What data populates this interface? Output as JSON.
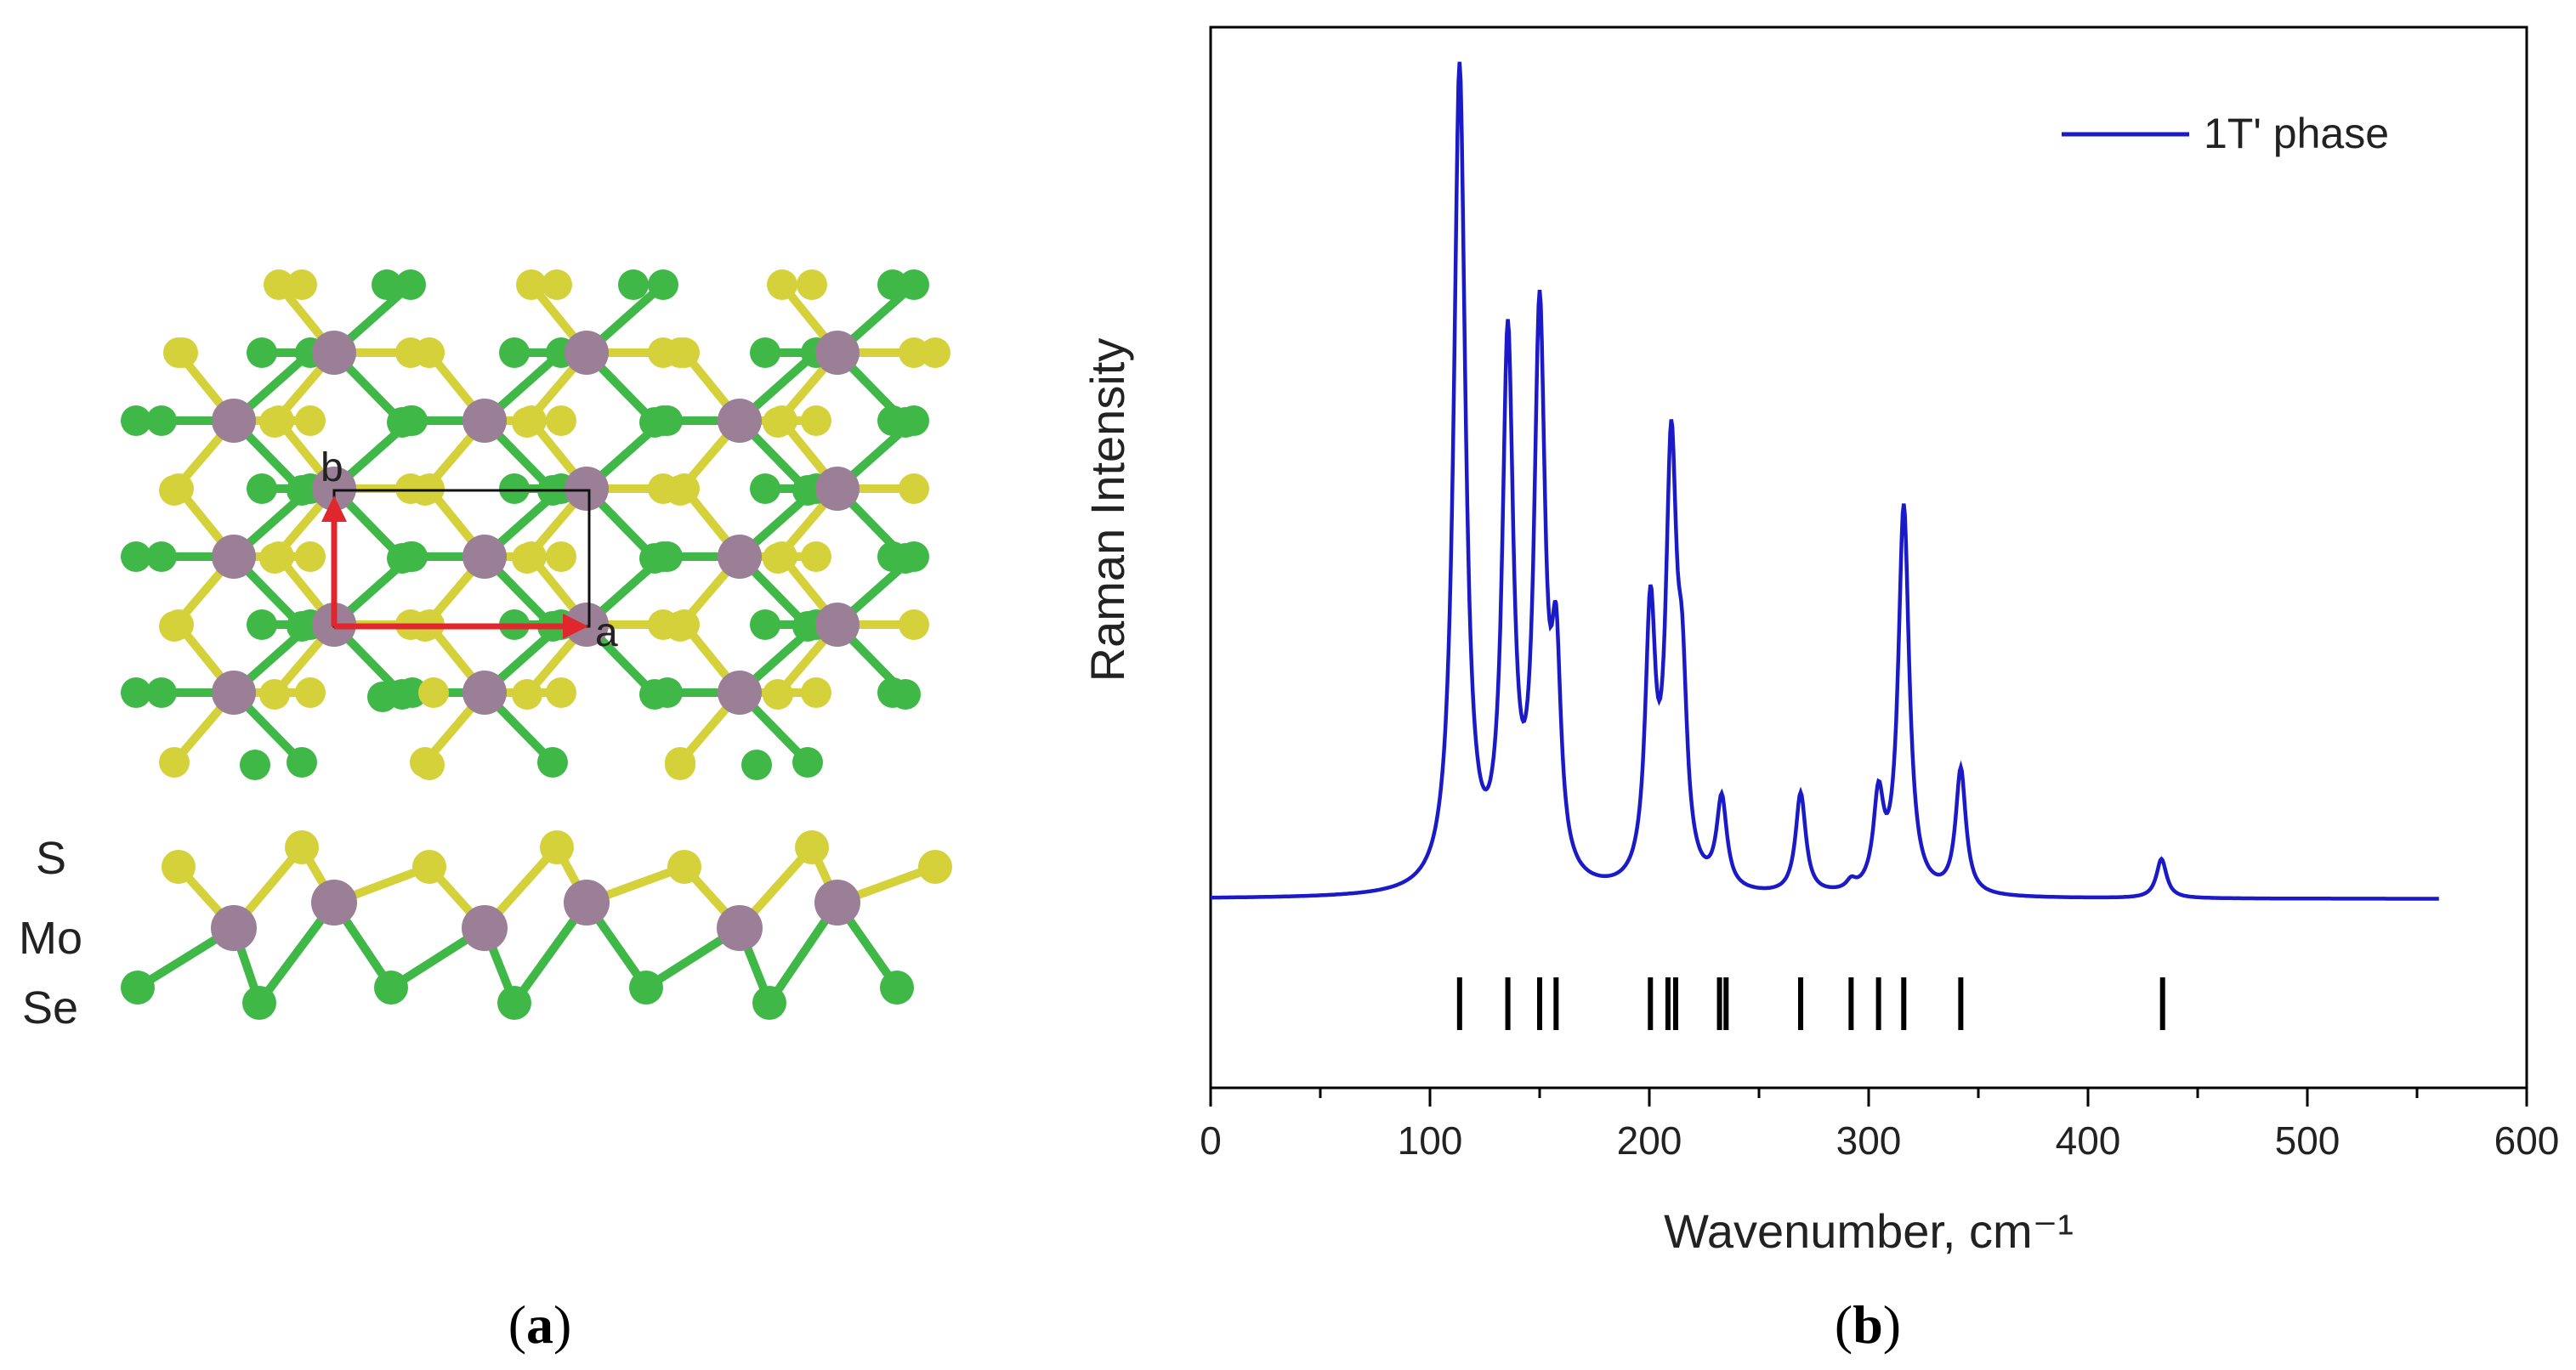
{
  "panel_a": {
    "caption_open": "(",
    "caption_letter": "a",
    "caption_close": ")",
    "lattice_labels": {
      "a": "a",
      "b": "b"
    },
    "layer_labels": [
      "S",
      "Mo",
      "Se"
    ],
    "colors": {
      "S": "#d4d13a",
      "Mo": "#9a7f96",
      "Se": "#3fb848",
      "vector": "#e0272d",
      "cell": "#111111"
    }
  },
  "panel_b": {
    "caption_open": "(",
    "caption_letter": "b",
    "caption_close": ")"
  },
  "chart_data": {
    "type": "line",
    "title": "",
    "xlabel": "Wavenumber, cm⁻¹",
    "ylabel": "Raman Intensity",
    "xlim": [
      0,
      600
    ],
    "xticks": [
      0,
      100,
      200,
      300,
      400,
      500,
      600
    ],
    "x_minor_step": 50,
    "ylim": [
      0,
      1
    ],
    "grid": false,
    "legend_position": "top-right",
    "series": [
      {
        "name": "1T' phase",
        "color": "#1a1ac8",
        "x_range": [
          0,
          560
        ],
        "baseline": 0.178,
        "peaks": [
          {
            "x": 113.5,
            "height": 0.775,
            "width": 3.2
          },
          {
            "x": 135.5,
            "height": 0.505,
            "width": 3.0
          },
          {
            "x": 150.0,
            "height": 0.525,
            "width": 3.0
          },
          {
            "x": 157.5,
            "height": 0.19,
            "width": 2.6
          },
          {
            "x": 200.5,
            "height": 0.25,
            "width": 2.8
          },
          {
            "x": 210.0,
            "height": 0.395,
            "width": 3.0
          },
          {
            "x": 215.0,
            "height": 0.15,
            "width": 2.6
          },
          {
            "x": 233.0,
            "height": 0.085,
            "width": 2.8
          },
          {
            "x": 269.0,
            "height": 0.095,
            "width": 2.8
          },
          {
            "x": 292.0,
            "height": 0.008,
            "width": 2.5
          },
          {
            "x": 304.5,
            "height": 0.085,
            "width": 2.8
          },
          {
            "x": 316.0,
            "height": 0.365,
            "width": 3.0
          },
          {
            "x": 342.0,
            "height": 0.118,
            "width": 2.8
          },
          {
            "x": 433.5,
            "height": 0.037,
            "width": 2.8
          }
        ]
      }
    ],
    "mode_markers": {
      "color": "#000000",
      "x": [
        113.5,
        135.5,
        150.0,
        157.5,
        200.5,
        208.5,
        212.0,
        232.0,
        235.0,
        269.0,
        292.0,
        304.5,
        316.0,
        342.0,
        434.0
      ]
    }
  }
}
